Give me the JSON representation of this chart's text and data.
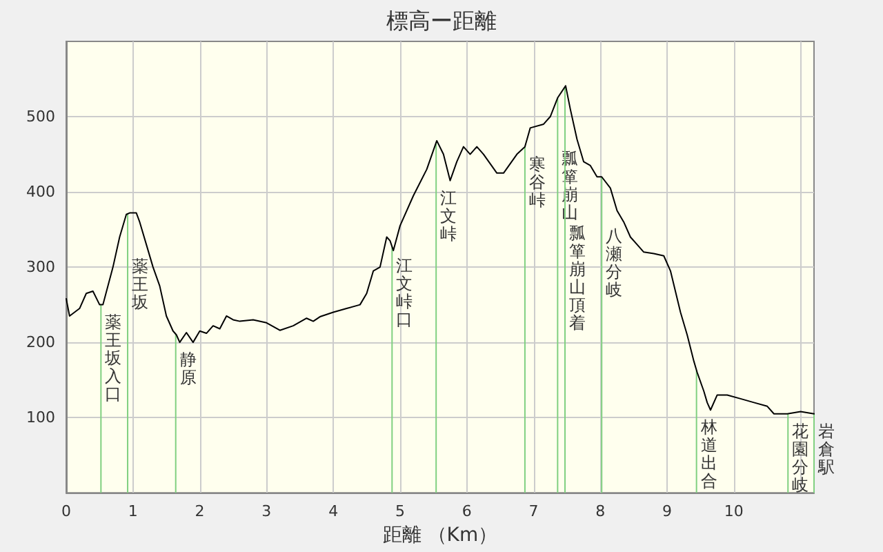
{
  "chart_data": {
    "type": "line",
    "title": "標高ー距離",
    "xlabel": "距離 （Km）",
    "x": [
      0,
      0.05,
      0.2,
      0.3,
      0.4,
      0.5,
      0.55,
      0.7,
      0.8,
      0.9,
      0.95,
      1.05,
      1.1,
      1.2,
      1.3,
      1.4,
      1.5,
      1.6,
      1.65,
      1.7,
      1.8,
      1.9,
      2.0,
      2.1,
      2.2,
      2.3,
      2.4,
      2.5,
      2.6,
      2.8,
      3.0,
      3.2,
      3.4,
      3.6,
      3.7,
      3.8,
      4.0,
      4.2,
      4.4,
      4.5,
      4.6,
      4.7,
      4.8,
      4.85,
      4.9,
      5.0,
      5.2,
      5.4,
      5.55,
      5.65,
      5.75,
      5.85,
      5.95,
      6.05,
      6.15,
      6.25,
      6.45,
      6.55,
      6.75,
      6.87,
      6.95,
      7.15,
      7.25,
      7.36,
      7.48,
      7.55,
      7.65,
      7.75,
      7.85,
      7.95,
      8.02,
      8.15,
      8.25,
      8.35,
      8.45,
      8.55,
      8.65,
      8.8,
      8.95,
      9.05,
      9.2,
      9.3,
      9.4,
      9.45,
      9.55,
      9.6,
      9.65,
      9.75,
      9.9,
      10.1,
      10.3,
      10.5,
      10.6,
      10.8,
      11.0,
      11.2
    ],
    "series": [
      {
        "color": "#000000",
        "values": [
          258,
          235,
          245,
          265,
          268,
          250,
          250,
          300,
          340,
          370,
          372,
          372,
          360,
          330,
          300,
          275,
          235,
          215,
          210,
          200,
          213,
          200,
          215,
          212,
          222,
          218,
          235,
          230,
          228,
          230,
          226,
          216,
          222,
          232,
          228,
          234,
          240,
          245,
          250,
          265,
          295,
          300,
          340,
          335,
          322,
          355,
          395,
          430,
          468,
          450,
          415,
          440,
          460,
          450,
          460,
          450,
          425,
          425,
          450,
          460,
          485,
          490,
          500,
          525,
          541,
          510,
          470,
          440,
          435,
          420,
          420,
          405,
          375,
          360,
          340,
          330,
          320,
          318,
          315,
          295,
          240,
          210,
          175,
          160,
          135,
          120,
          110,
          130,
          130,
          125,
          120,
          115,
          105,
          105,
          108,
          105
        ]
      }
    ],
    "xlim": [
      0,
      11.2
    ],
    "xticks": [
      0,
      1,
      2,
      3,
      4,
      5,
      6,
      7,
      8,
      9,
      10,
      {
        "value": 11,
        "label": null
      }
    ],
    "ylim": [
      0,
      600
    ],
    "yticks": [
      100,
      200,
      300,
      400,
      500
    ],
    "grid": true,
    "marker": "none",
    "line_style": "solid",
    "ref_lines": [
      {
        "axis": "x",
        "value": 0.52,
        "label": "薬王坂入口",
        "color": "#80d080"
      },
      {
        "axis": "x",
        "value": 0.92,
        "label": "薬王坂",
        "color": "#80d080"
      },
      {
        "axis": "x",
        "value": 1.64,
        "label": "静原",
        "color": "#80d080"
      },
      {
        "axis": "x",
        "value": 4.88,
        "label": "江文峠口",
        "color": "#80d080"
      },
      {
        "axis": "x",
        "value": 5.54,
        "label": "江文峠",
        "color": "#80d080"
      },
      {
        "axis": "x",
        "value": 6.87,
        "label": "寒谷峠",
        "color": "#80d080"
      },
      {
        "axis": "x",
        "value": 7.36,
        "label": "瓢箪崩山",
        "color": "#80d080"
      },
      {
        "axis": "x",
        "value": 7.47,
        "label": "瓢箪崩山頂着",
        "color": "#80d080"
      },
      {
        "axis": "x",
        "value": 8.02,
        "label": "八瀬分岐",
        "color": "#80d080"
      },
      {
        "axis": "x",
        "value": 9.44,
        "label": "林道出合",
        "color": "#80d080"
      },
      {
        "axis": "x",
        "value": 10.81,
        "label": "花園分岐",
        "color": "#80d080"
      },
      {
        "axis": "x",
        "value": 11.2,
        "label": "岩倉駅",
        "color": "#80d080"
      }
    ]
  }
}
